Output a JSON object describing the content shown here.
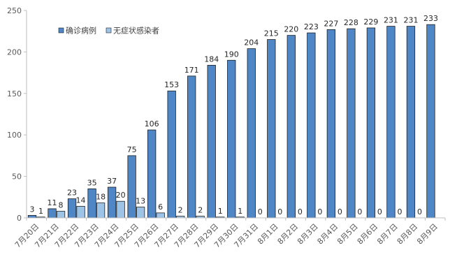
{
  "chart_data": {
    "type": "bar",
    "categories": [
      "7月20日",
      "7月21日",
      "7月22日",
      "7月23日",
      "7月24日",
      "7月25日",
      "7月26日",
      "7月27日",
      "7月28日",
      "7月29日",
      "7月30日",
      "7月31日",
      "8月1日",
      "8月2日",
      "8月3日",
      "8月4日",
      "8月5日",
      "8月6日",
      "8月7日",
      "8月8日",
      "8月9日"
    ],
    "series": [
      {
        "name": "确诊病例",
        "color": "#4f86c6",
        "values": [
          3,
          11,
          23,
          35,
          37,
          75,
          106,
          153,
          171,
          184,
          190,
          204,
          215,
          220,
          223,
          227,
          228,
          229,
          231,
          231,
          233
        ]
      },
      {
        "name": "无症状感染者",
        "color": "#9dc3e6",
        "values": [
          1,
          8,
          14,
          18,
          20,
          13,
          6,
          2,
          2,
          1,
          1,
          0,
          0,
          0,
          0,
          0,
          0,
          0,
          0,
          0,
          null
        ]
      }
    ],
    "y_ticks": [
      "0",
      "50",
      "100",
      "150",
      "200",
      "250"
    ],
    "ylim": [
      0,
      250
    ],
    "grid": false,
    "legend": "top-left",
    "title": "",
    "xlabel": "",
    "ylabel": ""
  }
}
